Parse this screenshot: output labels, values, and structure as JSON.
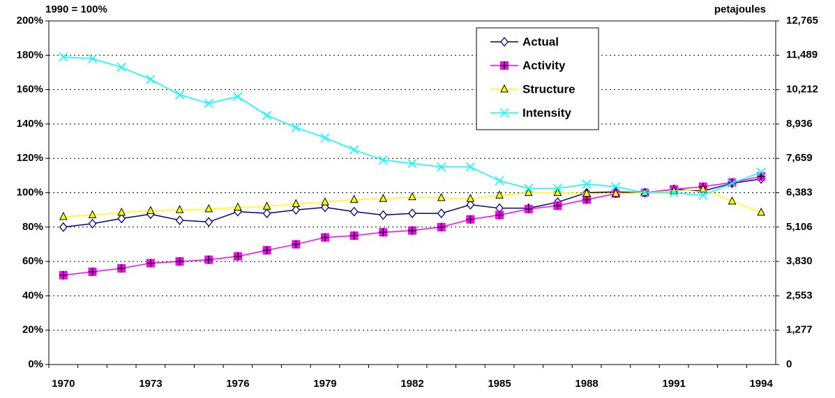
{
  "chart_data": {
    "type": "line",
    "y_label": "1990 = 100%",
    "y2_label": "petajoules",
    "categories": [
      "1970",
      null,
      null,
      "1973",
      null,
      null,
      "1976",
      null,
      null,
      "1979",
      null,
      null,
      "1982",
      null,
      null,
      "1985",
      null,
      null,
      "1988",
      null,
      null,
      "1991",
      null,
      null,
      "1994"
    ],
    "ylim": [
      0,
      200
    ],
    "yticks": [
      {
        "value": 0,
        "label": "0%"
      },
      {
        "value": 20,
        "label": "20%"
      },
      {
        "value": 40,
        "label": "40%"
      },
      {
        "value": 60,
        "label": "60%"
      },
      {
        "value": 80,
        "label": "80%"
      },
      {
        "value": 100,
        "label": "100%"
      },
      {
        "value": 120,
        "label": "120%"
      },
      {
        "value": 140,
        "label": "140%"
      },
      {
        "value": 160,
        "label": "160%"
      },
      {
        "value": 180,
        "label": "180%"
      },
      {
        "value": 200,
        "label": "200%"
      }
    ],
    "y2lim": [
      0,
      12765
    ],
    "y2ticks": [
      0,
      {
        "value": 1277,
        "label": "1,277"
      },
      {
        "value": 2553,
        "label": "2,553"
      },
      {
        "value": 3830,
        "label": "3,830"
      },
      {
        "value": 5106,
        "label": "5,106"
      },
      {
        "value": 6383,
        "label": "6,383"
      },
      {
        "value": 7659,
        "label": "7,659"
      },
      {
        "value": 8936,
        "label": "8,936"
      },
      {
        "value": 10212,
        "label": "10,212"
      },
      {
        "value": 11489,
        "label": "11,489"
      },
      {
        "value": 12765,
        "label": "12,765"
      }
    ],
    "grid": true,
    "legend": "top-center",
    "series": [
      {
        "name": "Actual",
        "color": "#000080",
        "marker": "diamond",
        "values": [
          80,
          82,
          85,
          87.5,
          84,
          83,
          89,
          88,
          90,
          91.5,
          89,
          87,
          88,
          88,
          93,
          91,
          91,
          94.5,
          100,
          100.5,
          100,
          102,
          101,
          105.5,
          108
        ]
      },
      {
        "name": "Activity",
        "color": "#ff00ff",
        "marker": "square",
        "values": [
          52,
          54,
          56,
          59,
          60,
          61,
          63,
          66.5,
          70,
          74,
          75,
          77,
          78,
          80,
          84.5,
          87,
          90.5,
          92.5,
          96,
          99.5,
          100,
          102,
          103.5,
          106,
          109.5
        ]
      },
      {
        "name": "Structure",
        "color": "#ffff00",
        "marker": "triangle",
        "values": [
          86,
          87,
          88.5,
          89.5,
          90,
          90.5,
          91.5,
          92,
          93.5,
          94.5,
          96,
          96.5,
          97.5,
          97,
          96.5,
          98.5,
          100,
          100,
          99.5,
          99.5,
          100,
          101,
          102,
          95,
          88.5
        ]
      },
      {
        "name": "Intensity",
        "color": "#00ffff",
        "marker": "x",
        "values": [
          179,
          178,
          173,
          166,
          157,
          152,
          156,
          145,
          138,
          132,
          125,
          119,
          117,
          115,
          115,
          107,
          102.5,
          102.5,
          105,
          103.5,
          100,
          100,
          98.5,
          105.5,
          112
        ]
      }
    ]
  }
}
